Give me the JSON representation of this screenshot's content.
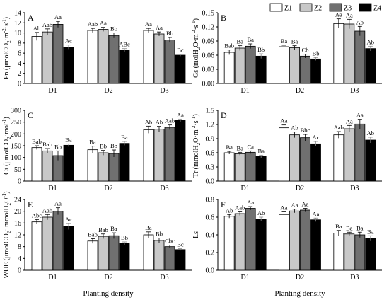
{
  "figure": {
    "xlabel": "Planting density",
    "categories": [
      "D1",
      "D2",
      "D3"
    ],
    "legend": [
      {
        "name": "Z1",
        "color": "#ffffff"
      },
      {
        "name": "Z2",
        "color": "#c8c8c8"
      },
      {
        "name": "Z3",
        "color": "#707070"
      },
      {
        "name": "Z4",
        "color": "#000000"
      }
    ]
  },
  "chart_data": [
    {
      "type": "bar",
      "panel": "A",
      "ylabel": "Pn (μmolCO2·m⁻²·s⁻¹)",
      "categories": [
        "D1",
        "D2",
        "D3"
      ],
      "ylim": [
        0,
        14
      ],
      "yticks": [
        0,
        2,
        4,
        6,
        8,
        10,
        12,
        14
      ],
      "series": [
        {
          "name": "Z1",
          "values": [
            9.3,
            10.5,
            10.5
          ],
          "errors": [
            0.8,
            0.4,
            0.4
          ],
          "labels": [
            "Ab",
            "Aab",
            "Aa"
          ]
        },
        {
          "name": "Z2",
          "values": [
            10.2,
            10.7,
            9.8
          ],
          "errors": [
            0.6,
            0.4,
            0.4
          ],
          "labels": [
            "Aab",
            "Aa",
            "Aa"
          ]
        },
        {
          "name": "Z3",
          "values": [
            11.7,
            9.5,
            8.6
          ],
          "errors": [
            0.6,
            0.5,
            0.5
          ],
          "labels": [
            "Aa",
            "Bb",
            "Bb"
          ]
        },
        {
          "name": "Z4",
          "values": [
            7.2,
            6.6,
            5.6
          ],
          "errors": [
            0.4,
            0.3,
            0.2
          ],
          "labels": [
            "Ac",
            "ABc",
            "Bc"
          ]
        }
      ]
    },
    {
      "type": "bar",
      "panel": "B",
      "ylabel": "Gs (molH2O·m⁻²·s⁻¹)",
      "categories": [
        "D1",
        "D2",
        "D3"
      ],
      "ylim": [
        0,
        0.15
      ],
      "yticks": [
        0.0,
        0.03,
        0.06,
        0.09,
        0.12,
        0.15
      ],
      "series": [
        {
          "name": "Z1",
          "values": [
            0.066,
            0.078,
            0.127
          ],
          "errors": [
            0.005,
            0.003,
            0.01
          ],
          "labels": [
            "Bab",
            "Ba",
            "Aa"
          ]
        },
        {
          "name": "Z2",
          "values": [
            0.075,
            0.076,
            0.126
          ],
          "errors": [
            0.005,
            0.004,
            0.01
          ],
          "labels": [
            "Ba",
            "Ba",
            "Aa"
          ]
        },
        {
          "name": "Z3",
          "values": [
            0.079,
            0.058,
            0.111
          ],
          "errors": [
            0.005,
            0.004,
            0.01
          ],
          "labels": [
            "Ba",
            "Cb",
            "Ab"
          ]
        },
        {
          "name": "Z4",
          "values": [
            0.058,
            0.052,
            0.074
          ],
          "errors": [
            0.005,
            0.003,
            0.005
          ],
          "labels": [
            "Bb",
            "Bb",
            "Ab"
          ]
        }
      ]
    },
    {
      "type": "bar",
      "panel": "C",
      "ylabel": "Ci (μmolCO2·mol⁻¹)",
      "categories": [
        "D1",
        "D2",
        "D3"
      ],
      "ylim": [
        0,
        300
      ],
      "yticks": [
        0,
        50,
        100,
        150,
        200,
        250,
        300
      ],
      "series": [
        {
          "name": "Z1",
          "values": [
            142,
            133,
            218
          ],
          "errors": [
            8,
            15,
            15
          ],
          "labels": [
            "Bab",
            "Ba",
            "Ab"
          ]
        },
        {
          "name": "Z2",
          "values": [
            128,
            120,
            220
          ],
          "errors": [
            10,
            10,
            12
          ],
          "labels": [
            "Bab",
            "Bb",
            "Ab"
          ]
        },
        {
          "name": "Z3",
          "values": [
            108,
            117,
            228
          ],
          "errors": [
            20,
            15,
            10
          ],
          "labels": [
            "Bb",
            "Bb",
            "Aab"
          ]
        },
        {
          "name": "Z4",
          "values": [
            152,
            160,
            257
          ],
          "errors": [
            6,
            8,
            6
          ],
          "labels": [
            "Ba",
            "Ba",
            "Aa"
          ]
        }
      ]
    },
    {
      "type": "bar",
      "panel": "D",
      "ylabel": "Tr (mmolH2O·m⁻²·s⁻¹)",
      "categories": [
        "D1",
        "D2",
        "D3"
      ],
      "ylim": [
        0,
        1.5
      ],
      "yticks": [
        0.0,
        0.3,
        0.6,
        0.9,
        1.2,
        1.5
      ],
      "series": [
        {
          "name": "Z1",
          "values": [
            0.6,
            1.13,
            0.98
          ],
          "errors": [
            0.03,
            0.06,
            0.07
          ],
          "labels": [
            "Ba",
            "Aa",
            "Aab"
          ]
        },
        {
          "name": "Z2",
          "values": [
            0.58,
            0.98,
            1.11
          ],
          "errors": [
            0.03,
            0.06,
            0.07
          ],
          "labels": [
            "Ba",
            "Ab",
            "Aa"
          ]
        },
        {
          "name": "Z3",
          "values": [
            0.61,
            0.92,
            1.21
          ],
          "errors": [
            0.03,
            0.07,
            0.1
          ],
          "labels": [
            "Ca",
            "Bbc",
            "Aa"
          ]
        },
        {
          "name": "Z4",
          "values": [
            0.52,
            0.79,
            0.87
          ],
          "errors": [
            0.03,
            0.05,
            0.06
          ],
          "labels": [
            "Ba",
            "Ac",
            "Ab"
          ]
        }
      ]
    },
    {
      "type": "bar",
      "panel": "E",
      "ylabel": "WUE (μmolCO2· mmolH2O⁻¹)",
      "categories": [
        "D1",
        "D2",
        "D3"
      ],
      "ylim": [
        0,
        24
      ],
      "yticks": [
        0,
        4,
        8,
        12,
        16,
        20,
        24
      ],
      "series": [
        {
          "name": "Z1",
          "values": [
            16.4,
            9.9,
            12.0
          ],
          "errors": [
            0.8,
            0.8,
            1.0
          ],
          "labels": [
            "Abc",
            "Bab",
            "Ba"
          ]
        },
        {
          "name": "Z2",
          "values": [
            18.0,
            11.5,
            10.1
          ],
          "errors": [
            0.9,
            0.8,
            0.8
          ],
          "labels": [
            "Aab",
            "Bab",
            "Bb"
          ]
        },
        {
          "name": "Z3",
          "values": [
            20.0,
            11.7,
            8.0
          ],
          "errors": [
            1.2,
            1.0,
            0.5
          ],
          "labels": [
            "Aa",
            "Ba",
            "Cbc"
          ]
        },
        {
          "name": "Z4",
          "values": [
            14.8,
            9.1,
            7.0
          ],
          "errors": [
            1.0,
            0.5,
            0.3
          ],
          "labels": [
            "Ac",
            "Bb",
            "Bc"
          ]
        }
      ]
    },
    {
      "type": "bar",
      "panel": "F",
      "ylabel": "Ls",
      "categories": [
        "D1",
        "D2",
        "D3"
      ],
      "ylim": [
        0,
        0.8
      ],
      "yticks": [
        0.0,
        0.2,
        0.4,
        0.6,
        0.8
      ],
      "series": [
        {
          "name": "Z1",
          "values": [
            0.61,
            0.63,
            0.42
          ],
          "errors": [
            0.02,
            0.03,
            0.03
          ],
          "labels": [
            "Ab",
            "Aa",
            "Ba"
          ]
        },
        {
          "name": "Z2",
          "values": [
            0.64,
            0.67,
            0.41
          ],
          "errors": [
            0.02,
            0.02,
            0.02
          ],
          "labels": [
            "Aab",
            "Aa",
            "Ba"
          ]
        },
        {
          "name": "Z3",
          "values": [
            0.7,
            0.68,
            0.4
          ],
          "errors": [
            0.02,
            0.02,
            0.03
          ],
          "labels": [
            "Aa",
            "Aa",
            "Ba"
          ]
        },
        {
          "name": "Z4",
          "values": [
            0.58,
            0.57,
            0.36
          ],
          "errors": [
            0.02,
            0.02,
            0.03
          ],
          "labels": [
            "Ab",
            "Aa",
            "Ba"
          ]
        }
      ]
    }
  ]
}
